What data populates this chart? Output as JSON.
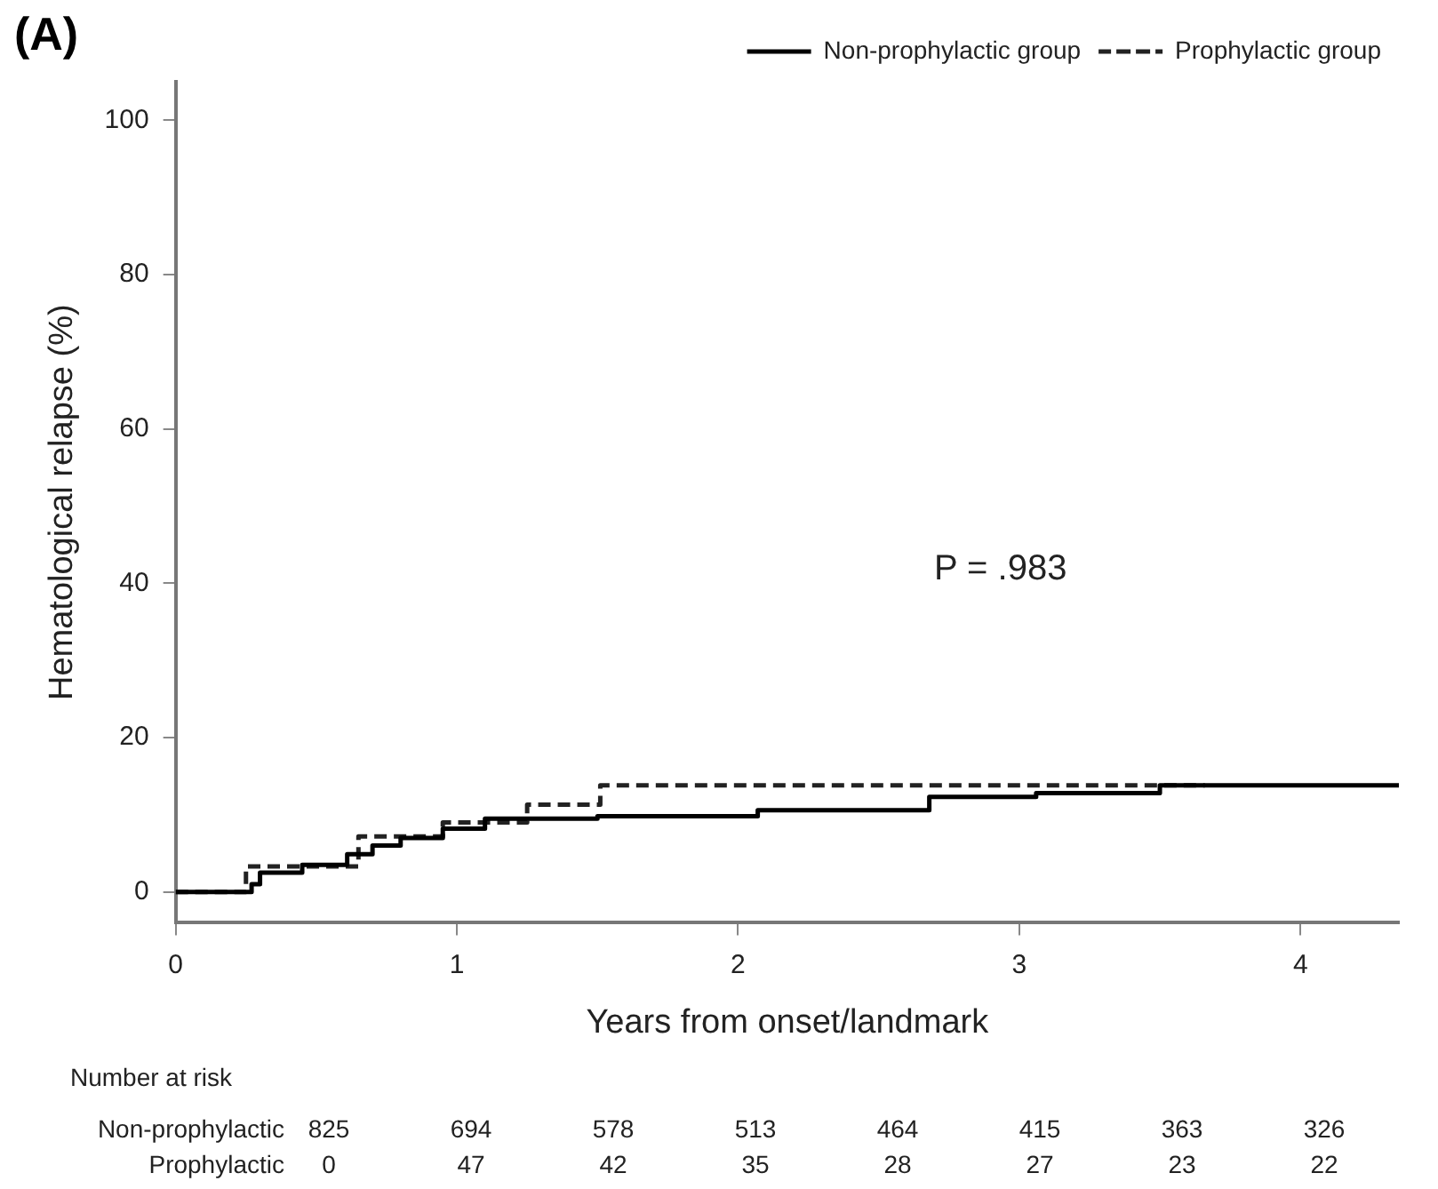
{
  "chart_data": {
    "type": "step",
    "title": "(A)",
    "xlabel": "Years from onset/landmark",
    "ylabel": "Hematological relapse (%)",
    "xlim": [
      0,
      4.35
    ],
    "xticks": [
      0,
      1,
      2,
      3,
      4
    ],
    "ylim": [
      -4,
      105
    ],
    "yticks": [
      0,
      20,
      40,
      60,
      80,
      100
    ],
    "grid": false,
    "legend": "top right",
    "series": [
      {
        "name": "Non-prophylactic group",
        "color": "#000000",
        "line_style": "solid",
        "x": [
          0,
          0.25,
          0.27,
          0.3,
          0.45,
          0.61,
          0.7,
          0.8,
          0.95,
          1.1,
          1.5,
          2.07,
          2.68,
          3.06,
          3.5,
          4.35
        ],
        "values": [
          0,
          0,
          1,
          2.5,
          3.5,
          4.9,
          6,
          7,
          8.2,
          9.5,
          9.8,
          10.6,
          12.3,
          12.8,
          13.8,
          13.8
        ]
      },
      {
        "name": "Prophylactic group",
        "color": "#222222",
        "line_style": "dashed",
        "x": [
          0,
          0.25,
          0.65,
          0.95,
          1.25,
          1.51,
          3.66
        ],
        "values": [
          0,
          3.3,
          7.2,
          9,
          11.3,
          13.8,
          13.8
        ]
      }
    ],
    "annotations": [
      "P = .983",
      "Number at risk",
      "Non-prophylactic 825 694 578 513 464 415 363 326",
      "Prophylactic 0 47 42 35 28 27 23 22"
    ]
  }
}
